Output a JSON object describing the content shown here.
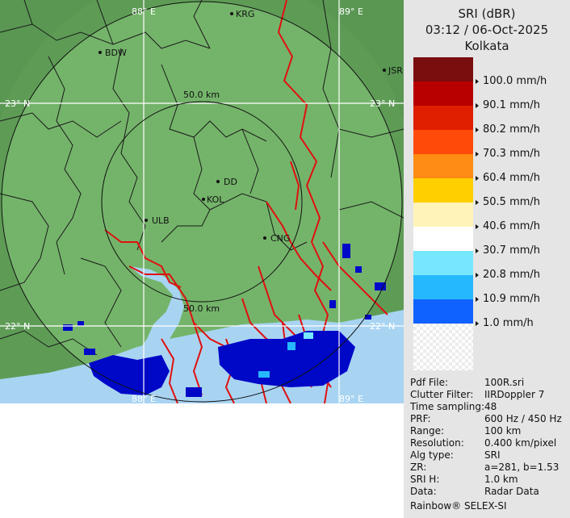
{
  "panel": {
    "title": "SRI (dBR)",
    "datetime": "03:12 / 06-Oct-2025",
    "station": "Kolkata",
    "legend": [
      {
        "label": "",
        "color": "#7a0d0d"
      },
      {
        "label": "100.0 mm/h",
        "color": "#b80000"
      },
      {
        "label": "90.1 mm/h",
        "color": "#e01e00"
      },
      {
        "label": "80.2 mm/h",
        "color": "#ff4a0a"
      },
      {
        "label": "70.3 mm/h",
        "color": "#ff8c14"
      },
      {
        "label": "60.4 mm/h",
        "color": "#ffd000"
      },
      {
        "label": "50.5 mm/h",
        "color": "#fff3b8"
      },
      {
        "label": "40.6 mm/h",
        "color": "#ffffff"
      },
      {
        "label": "30.7 mm/h",
        "color": "#75e8ff"
      },
      {
        "label": "20.8 mm/h",
        "color": "#26b8ff"
      },
      {
        "label": "10.9 mm/h",
        "color": "#0f62ff"
      },
      {
        "label": "1.0 mm/h",
        "color": "#0008c8"
      }
    ],
    "info": [
      {
        "key": "Pdf File:",
        "value": "100R.sri"
      },
      {
        "key": "Clutter Filter:",
        "value": "IIRDoppler 7"
      },
      {
        "key": "Time sampling:",
        "value": "48"
      },
      {
        "key": "PRF:",
        "value": "600 Hz / 450 Hz"
      },
      {
        "key": "Range:",
        "value": "100 km"
      },
      {
        "key": "Resolution:",
        "value": "0.400 km/pixel"
      },
      {
        "key": "Alg type:",
        "value": "SRI"
      },
      {
        "key": "ZR:",
        "value": "a=281, b=1.53"
      },
      {
        "key": "SRI H:",
        "value": "1.0 km"
      },
      {
        "key": "Data:",
        "value": "Radar Data"
      }
    ],
    "footer": "Rainbow® SELEX-SI"
  },
  "map": {
    "grid_labels": {
      "lon_88": "88° E",
      "lon_89": "89° E",
      "lat_23": "23° N",
      "lat_22": "22° N"
    },
    "range_rings": {
      "inner_top": "50.0 km",
      "inner_bottom": "50.0 km"
    },
    "places": {
      "krg": "KRG",
      "bdw": "BDW",
      "jsr": "JSR",
      "dd": "DD",
      "kol": "KOL",
      "ulb": "ULB",
      "cng": "CNG"
    },
    "colors": {
      "land": "#5e9c56",
      "coverage": "#74b46a",
      "water": "#a8d4f2",
      "border": "#e01010",
      "echo": "#0008c8"
    }
  }
}
